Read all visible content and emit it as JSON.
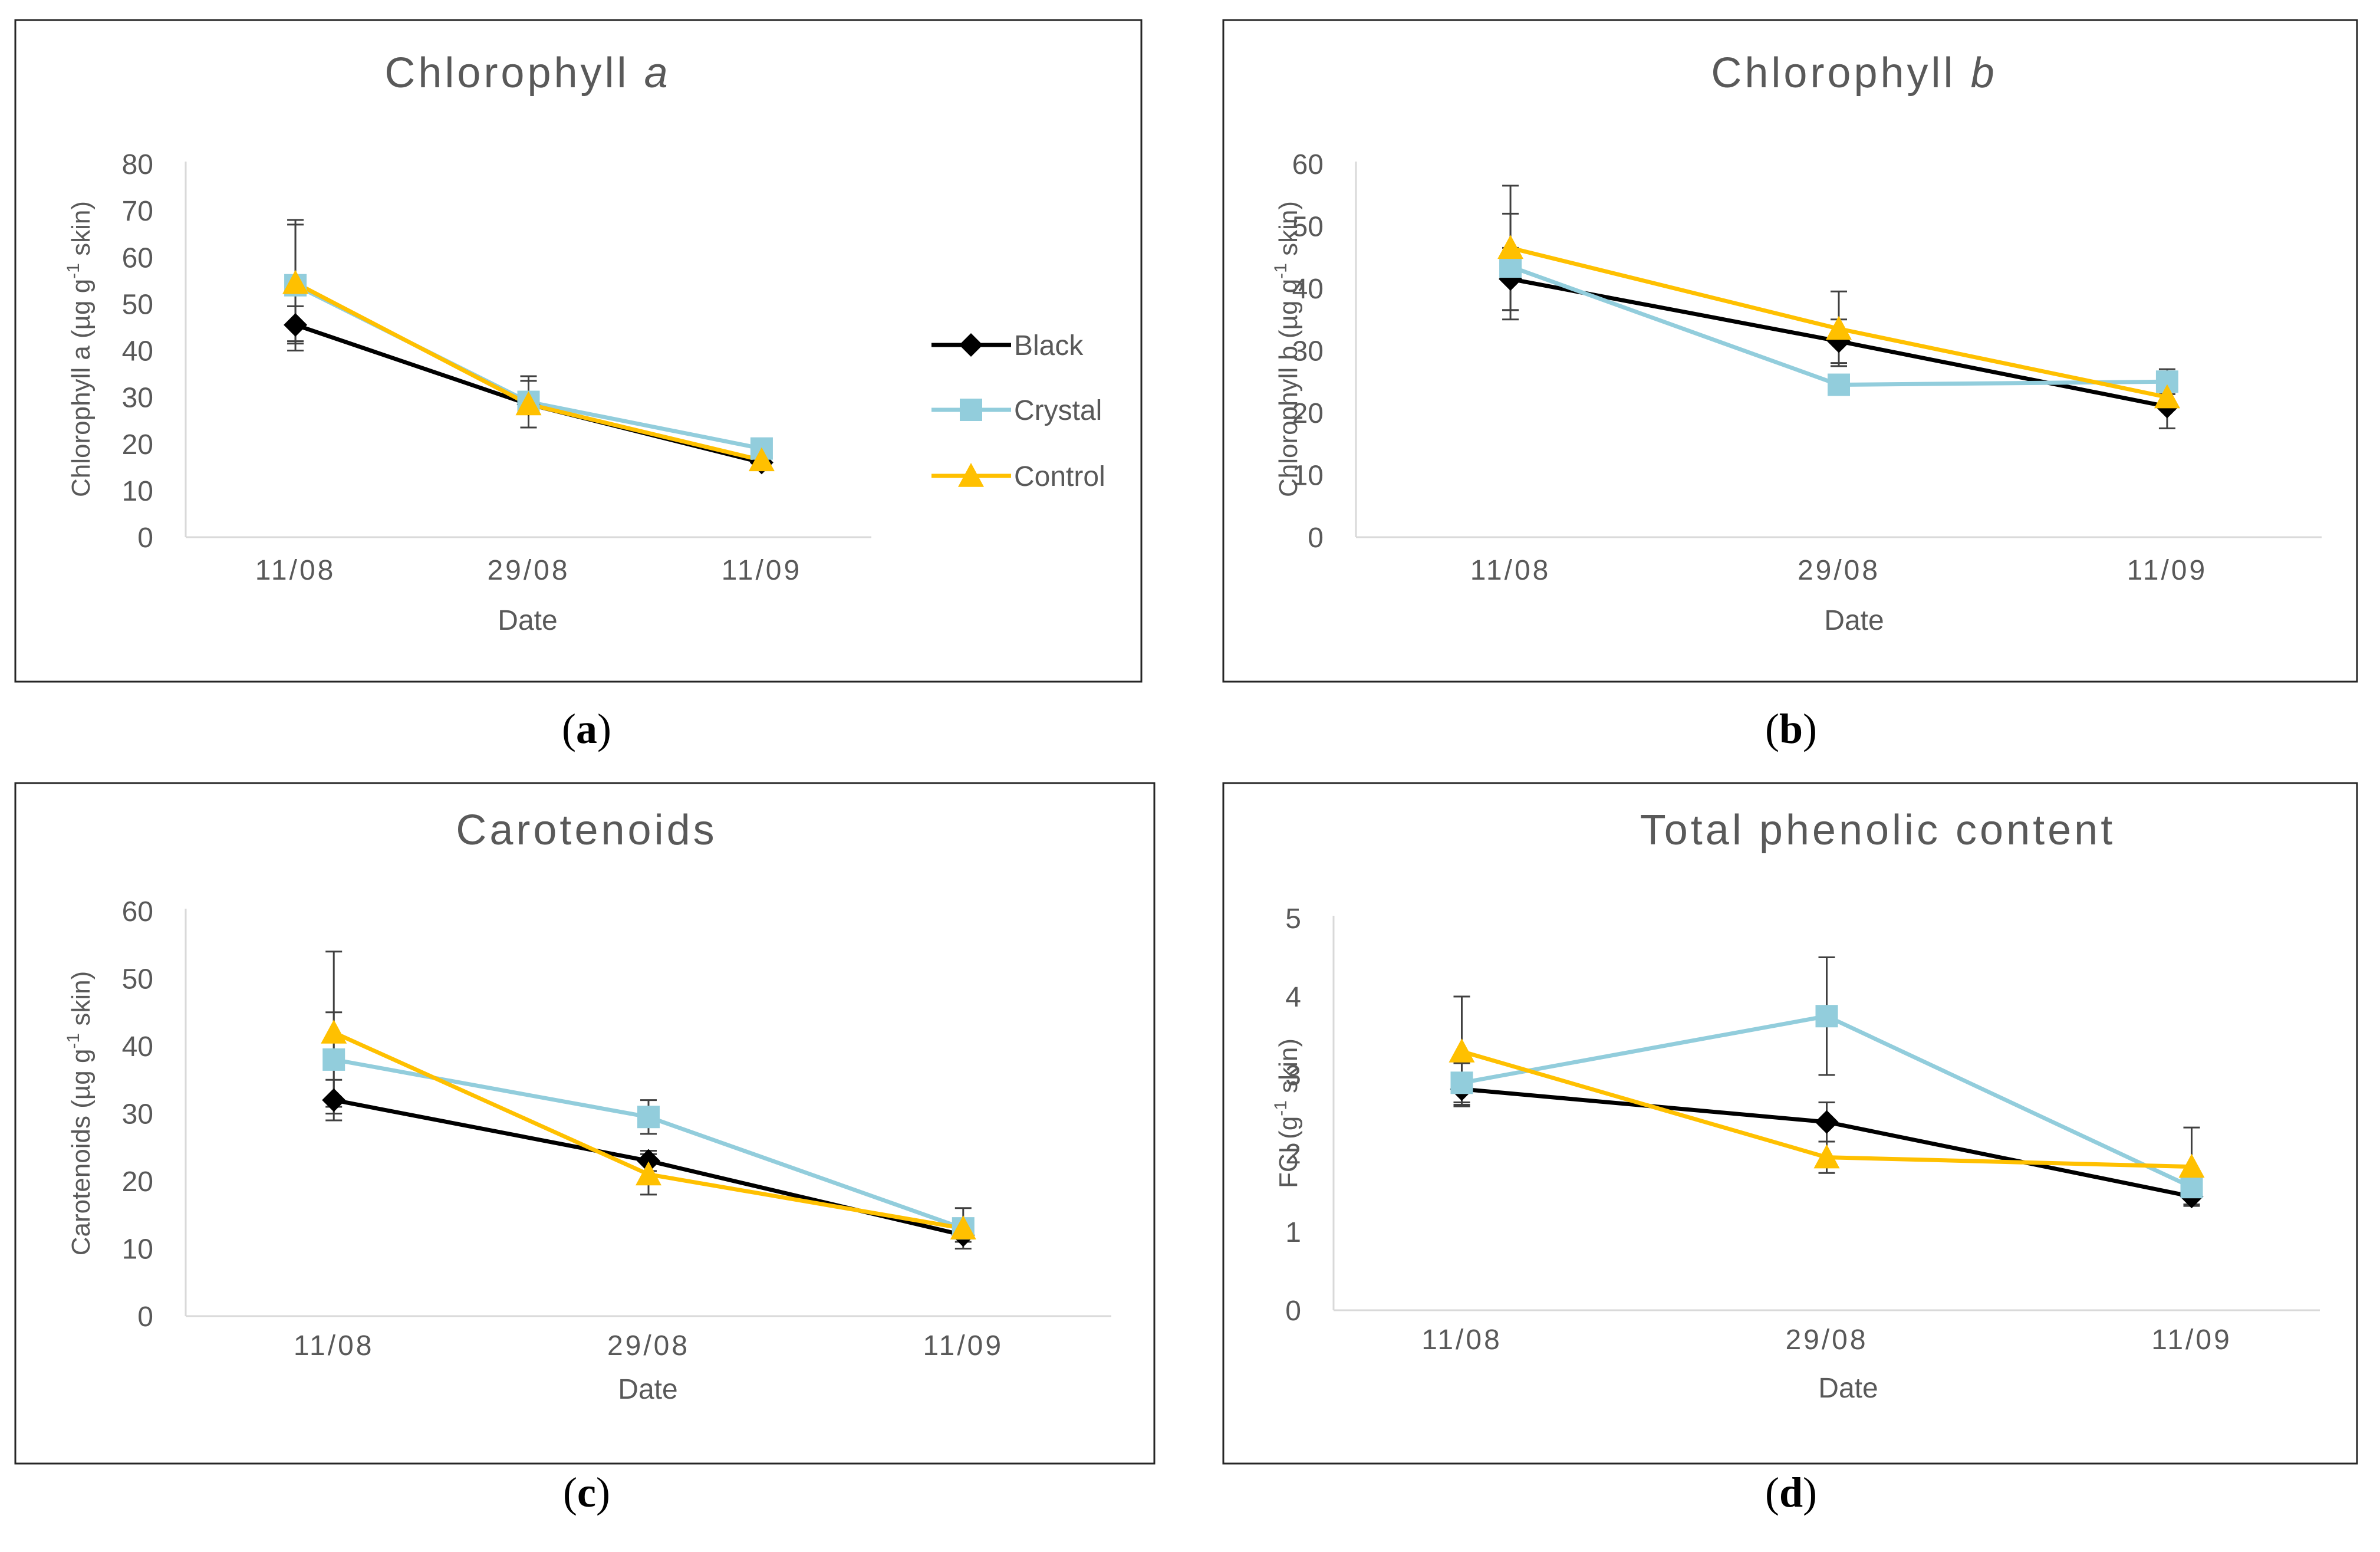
{
  "colors": {
    "black": "#000000",
    "crystal": "#92CDDC",
    "control": "#FFC000",
    "axis": "#D9D9D9",
    "text": "#595959",
    "error": "#404040"
  },
  "legend": [
    {
      "key": "black",
      "name": "Black",
      "marker": "diamond"
    },
    {
      "key": "crystal",
      "name": "Crystal",
      "marker": "square"
    },
    {
      "key": "control",
      "name": "Control",
      "marker": "triangle"
    }
  ],
  "captions": [
    {
      "open": "(",
      "letter": "a",
      "close": ")"
    },
    {
      "open": "(",
      "letter": "b",
      "close": ")"
    },
    {
      "open": "(",
      "letter": "c",
      "close": ")"
    },
    {
      "open": "(",
      "letter": "d",
      "close": ")"
    }
  ],
  "chart_data": [
    {
      "type": "line",
      "title": "Chlorophyll",
      "title_italic": "a",
      "xlabel": "Date",
      "ylabel_pre": "Chlorophyll a (µg g",
      "ylabel_sup": "-1",
      "ylabel_post": " skin)",
      "categories": [
        "11/08",
        "29/08",
        "11/09"
      ],
      "ylim": [
        0,
        80
      ],
      "yticks": [
        0,
        10,
        20,
        30,
        40,
        50,
        60,
        70,
        80
      ],
      "series": [
        {
          "name": "Black",
          "values": [
            45.5,
            28.5,
            16
          ],
          "errors": [
            4,
            5,
            1.5
          ]
        },
        {
          "name": "Crystal",
          "values": [
            54,
            29,
            19
          ],
          "errors": [
            14,
            5.5,
            1
          ]
        },
        {
          "name": "Control",
          "values": [
            54.5,
            28.5,
            16.5
          ],
          "errors": [
            12.5,
            5,
            1
          ]
        }
      ]
    },
    {
      "type": "line",
      "title": "Chlorophyll",
      "title_italic": "b",
      "xlabel": "Date",
      "ylabel_pre": "Chlorophyll b (µg g",
      "ylabel_sup": "-1",
      "ylabel_post": " skin)",
      "categories": [
        "11/08",
        "29/08",
        "11/09"
      ],
      "ylim": [
        0,
        60
      ],
      "yticks": [
        0,
        10,
        20,
        30,
        40,
        50,
        60
      ],
      "series": [
        {
          "name": "Black",
          "values": [
            41.5,
            31.5,
            21
          ],
          "errors": [
            5,
            3.5,
            3.5
          ]
        },
        {
          "name": "Crystal",
          "values": [
            43.5,
            24.5,
            25
          ],
          "errors": [
            8.5,
            1,
            2
          ]
        },
        {
          "name": "Control",
          "values": [
            46.5,
            33.5,
            22.5
          ],
          "errors": [
            10,
            6,
            2
          ]
        }
      ]
    },
    {
      "type": "line",
      "title": "Carotenoids",
      "title_italic": "",
      "xlabel": "Date",
      "ylabel_pre": "Carotenoids (µg g",
      "ylabel_sup": "-1",
      "ylabel_post": " skin)",
      "categories": [
        "11/08",
        "29/08",
        "11/09"
      ],
      "ylim": [
        0,
        60
      ],
      "yticks": [
        0,
        10,
        20,
        30,
        40,
        50,
        60
      ],
      "series": [
        {
          "name": "Black",
          "values": [
            32,
            23,
            12
          ],
          "errors": [
            3,
            1.5,
            1
          ]
        },
        {
          "name": "Crystal",
          "values": [
            38,
            29.5,
            13
          ],
          "errors": [
            7,
            2.5,
            3
          ]
        },
        {
          "name": "Control",
          "values": [
            42,
            21,
            13
          ],
          "errors": [
            12,
            3,
            1
          ]
        }
      ]
    },
    {
      "type": "line",
      "title": "Total phenolic content",
      "title_italic": "",
      "xlabel": "Date",
      "ylabel_pre": "FCI (g",
      "ylabel_sup": "-1",
      "ylabel_post": " skin)",
      "categories": [
        "11/08",
        "29/08",
        "11/09"
      ],
      "ylim": [
        0,
        5
      ],
      "yticks": [
        0,
        1,
        2,
        3,
        4,
        5
      ],
      "series": [
        {
          "name": "Black",
          "values": [
            2.82,
            2.4,
            1.45
          ],
          "errors": [
            0.2,
            0.25,
            0.1
          ]
        },
        {
          "name": "Crystal",
          "values": [
            2.9,
            3.75,
            1.57
          ],
          "errors": [
            0.25,
            0.75,
            0.12
          ]
        },
        {
          "name": "Control",
          "values": [
            3.3,
            1.95,
            1.83
          ],
          "errors": [
            0.7,
            0.2,
            0.5
          ]
        }
      ]
    }
  ]
}
